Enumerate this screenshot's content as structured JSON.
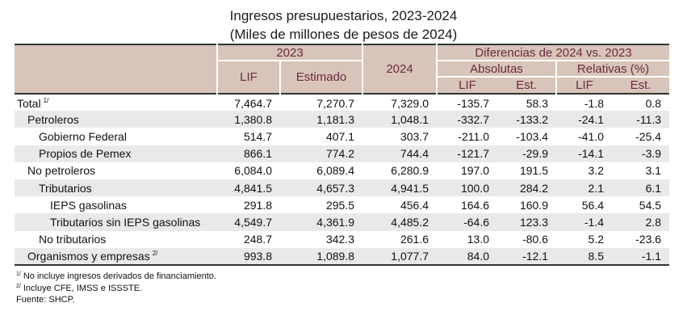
{
  "title": {
    "line1": "Ingresos presupuestarios, 2023-2024",
    "line2": "(Miles de millones de pesos de 2024)"
  },
  "header": {
    "year_2023": "2023",
    "year_2024": "2024",
    "differences": "Diferencias de 2024 vs. 2023",
    "absolutas": "Absolutas",
    "relativas": "Relativas (%)",
    "lif": "LIF",
    "estimado": "Estimado",
    "lif_short": "LIF",
    "est_short": "Est."
  },
  "rows": [
    {
      "label": "Total",
      "note": "1/",
      "lif_2023": "7,464.7",
      "est_2023": "7,270.7",
      "v_2024": "7,329.0",
      "abs_lif": "-135.7",
      "abs_est": "58.3",
      "rel_lif": "-1.8",
      "rel_est": "0.8"
    },
    {
      "label": "Petroleros",
      "note": "",
      "lif_2023": "1,380.8",
      "est_2023": "1,181.3",
      "v_2024": "1,048.1",
      "abs_lif": "-332.7",
      "abs_est": "-133.2",
      "rel_lif": "-24.1",
      "rel_est": "-11.3"
    },
    {
      "label": "Gobierno Federal",
      "note": "",
      "lif_2023": "514.7",
      "est_2023": "407.1",
      "v_2024": "303.7",
      "abs_lif": "-211.0",
      "abs_est": "-103.4",
      "rel_lif": "-41.0",
      "rel_est": "-25.4"
    },
    {
      "label": "Propios de Pemex",
      "note": "",
      "lif_2023": "866.1",
      "est_2023": "774.2",
      "v_2024": "744.4",
      "abs_lif": "-121.7",
      "abs_est": "-29.9",
      "rel_lif": "-14.1",
      "rel_est": "-3.9"
    },
    {
      "label": "No petroleros",
      "note": "",
      "lif_2023": "6,084.0",
      "est_2023": "6,089.4",
      "v_2024": "6,280.9",
      "abs_lif": "197.0",
      "abs_est": "191.5",
      "rel_lif": "3.2",
      "rel_est": "3.1"
    },
    {
      "label": "Tributarios",
      "note": "",
      "lif_2023": "4,841.5",
      "est_2023": "4,657.3",
      "v_2024": "4,941.5",
      "abs_lif": "100.0",
      "abs_est": "284.2",
      "rel_lif": "2.1",
      "rel_est": "6.1"
    },
    {
      "label": "IEPS gasolinas",
      "note": "",
      "lif_2023": "291.8",
      "est_2023": "295.5",
      "v_2024": "456.4",
      "abs_lif": "164.6",
      "abs_est": "160.9",
      "rel_lif": "56.4",
      "rel_est": "54.5"
    },
    {
      "label": "Tributarios sin IEPS gasolinas",
      "note": "",
      "lif_2023": "4,549.7",
      "est_2023": "4,361.9",
      "v_2024": "4,485.2",
      "abs_lif": "-64.6",
      "abs_est": "123.3",
      "rel_lif": "-1.4",
      "rel_est": "2.8"
    },
    {
      "label": "No tributarios",
      "note": "",
      "lif_2023": "248.7",
      "est_2023": "342.3",
      "v_2024": "261.6",
      "abs_lif": "13.0",
      "abs_est": "-80.6",
      "rel_lif": "5.2",
      "rel_est": "-23.6"
    },
    {
      "label": "Organismos y empresas",
      "note": "2/",
      "lif_2023": "993.8",
      "est_2023": "1,089.8",
      "v_2024": "1,077.7",
      "abs_lif": "84.0",
      "abs_est": "-12.1",
      "rel_lif": "8.5",
      "rel_est": "-1.1"
    }
  ],
  "notes": {
    "n1_mark": "1/",
    "n1_text": "No incluye ingresos derivados de financiamiento.",
    "n2_mark": "2/",
    "n2_text": "Incluye CFE, IMSS e ISSSTE.",
    "source": "Fuente: SHCP."
  },
  "colors": {
    "header_bg": "#d7c5b9",
    "header_text": "#6e2a3e",
    "stripe_bg": "#e9e9e9"
  }
}
